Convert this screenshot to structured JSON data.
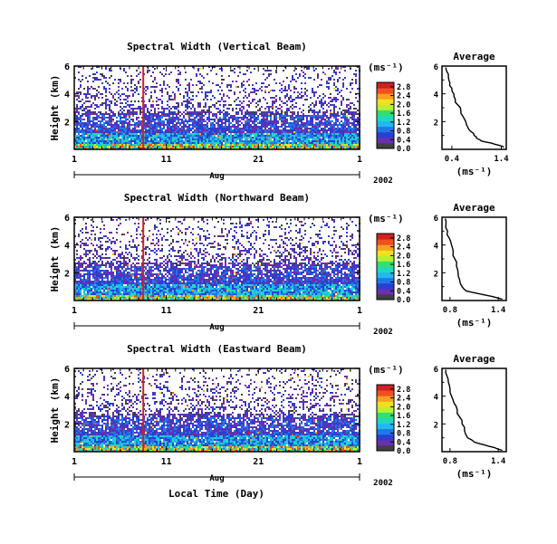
{
  "chart_data": {
    "type": "heatmap",
    "xlabel": "Local Time (Day)",
    "month_label": "Aug",
    "year_label": "2002",
    "x_ticks": [
      "1",
      "11",
      "21",
      "1"
    ],
    "y_ticks": [
      "2",
      "4",
      "6"
    ],
    "ylabel": "Height (km)",
    "ylim": [
      0,
      6
    ],
    "xlim_days": [
      1,
      32
    ],
    "colorbar": {
      "unit": "(ms⁻¹)",
      "ticks": [
        "0.0",
        "0.4",
        "0.8",
        "1.2",
        "1.6",
        "2.0",
        "2.4",
        "2.8"
      ],
      "range": [
        0,
        3.0
      ],
      "colors": [
        "#404040",
        "#6a2fb0",
        "#2a3fd0",
        "#1f78e8",
        "#22b8f0",
        "#20d8c0",
        "#30e070",
        "#b8f030",
        "#f0e020",
        "#f8a020",
        "#f05020",
        "#d02020"
      ]
    },
    "panels": [
      {
        "title": "Spectral Width (Vertical Beam)",
        "average": {
          "title": "Average",
          "xlabel": "(ms⁻¹)",
          "x_ticks": [
            "0.4",
            "1.4"
          ],
          "xlim": [
            0.2,
            1.5
          ],
          "ylim": [
            0,
            6
          ],
          "y_ticks": [
            "2",
            "4",
            "6"
          ],
          "profile": [
            [
              1.45,
              0.15
            ],
            [
              1.35,
              0.3
            ],
            [
              1.2,
              0.45
            ],
            [
              1.0,
              0.6
            ],
            [
              0.9,
              0.8
            ],
            [
              0.85,
              1.0
            ],
            [
              0.78,
              1.3
            ],
            [
              0.72,
              1.6
            ],
            [
              0.68,
              2.0
            ],
            [
              0.62,
              2.4
            ],
            [
              0.58,
              2.8
            ],
            [
              0.52,
              3.2
            ],
            [
              0.47,
              3.6
            ],
            [
              0.44,
              4.0
            ],
            [
              0.4,
              4.4
            ],
            [
              0.36,
              4.8
            ],
            [
              0.33,
              5.2
            ],
            [
              0.3,
              5.6
            ],
            [
              0.28,
              5.9
            ]
          ]
        }
      },
      {
        "title": "Spectral Width (Northward Beam)",
        "average": {
          "title": "Average",
          "xlabel": "(ms⁻¹)",
          "x_ticks": [
            "0.8",
            "1.4"
          ],
          "xlim": [
            0.7,
            1.5
          ],
          "ylim": [
            0,
            6
          ],
          "y_ticks": [
            "2",
            "4",
            "6"
          ],
          "profile": [
            [
              1.45,
              0.1
            ],
            [
              1.32,
              0.3
            ],
            [
              1.15,
              0.5
            ],
            [
              1.0,
              0.7
            ],
            [
              0.95,
              1.0
            ],
            [
              0.92,
              1.5
            ],
            [
              0.9,
              2.0
            ],
            [
              0.88,
              2.5
            ],
            [
              0.86,
              3.0
            ],
            [
              0.84,
              3.5
            ],
            [
              0.82,
              4.0
            ],
            [
              0.79,
              4.5
            ],
            [
              0.77,
              5.0
            ],
            [
              0.75,
              5.5
            ],
            [
              0.74,
              5.9
            ]
          ]
        }
      },
      {
        "title": "Spectral Width (Eastward Beam)",
        "average": {
          "title": "Average",
          "xlabel": "(ms⁻¹)",
          "x_ticks": [
            "0.8",
            "1.4"
          ],
          "xlim": [
            0.7,
            1.5
          ],
          "ylim": [
            0,
            6
          ],
          "y_ticks": [
            "2",
            "4",
            "6"
          ],
          "profile": [
            [
              1.45,
              0.1
            ],
            [
              1.35,
              0.3
            ],
            [
              1.22,
              0.5
            ],
            [
              1.1,
              0.7
            ],
            [
              1.02,
              1.0
            ],
            [
              0.98,
              1.5
            ],
            [
              0.95,
              2.0
            ],
            [
              0.92,
              2.5
            ],
            [
              0.89,
              3.0
            ],
            [
              0.85,
              3.5
            ],
            [
              0.82,
              4.0
            ],
            [
              0.8,
              4.5
            ],
            [
              0.78,
              5.0
            ],
            [
              0.76,
              5.5
            ],
            [
              0.75,
              5.9
            ]
          ]
        }
      }
    ]
  }
}
